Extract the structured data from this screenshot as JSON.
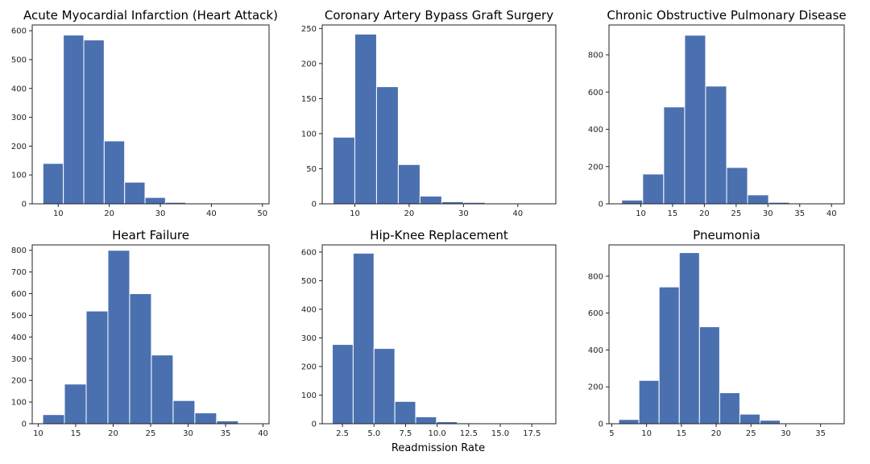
{
  "figure": {
    "xlabel": "Readmission Rate"
  },
  "chart_data": [
    {
      "type": "bar",
      "title": "Acute Myocardial Infarction (Heart Attack)",
      "xlim": [
        4.9,
        51.3
      ],
      "ylim": [
        0,
        620
      ],
      "xticks": [
        10,
        20,
        30,
        40,
        50
      ],
      "yticks": [
        0,
        100,
        200,
        300,
        400,
        500,
        600
      ],
      "bins": [
        [
          7.0,
          11.0
        ],
        [
          11.0,
          15.0
        ],
        [
          15.0,
          19.0
        ],
        [
          19.0,
          23.0
        ],
        [
          23.0,
          27.0
        ],
        [
          27.0,
          31.0
        ],
        [
          31.0,
          35.0
        ],
        [
          35.0,
          39.0
        ],
        [
          39.0,
          43.0
        ],
        [
          43.0,
          47.0
        ],
        [
          47.0,
          51.0
        ]
      ],
      "values": [
        140,
        585,
        568,
        218,
        75,
        22,
        5,
        2,
        1,
        1,
        1
      ]
    },
    {
      "type": "bar",
      "title": "Coronary Artery Bypass Graft Surgery",
      "xlim": [
        4.0,
        47.0
      ],
      "ylim": [
        0,
        255
      ],
      "xticks": [
        10,
        20,
        30,
        40
      ],
      "yticks": [
        0,
        50,
        100,
        150,
        200,
        250
      ],
      "bins": [
        [
          6.0,
          10.0
        ],
        [
          10.0,
          14.0
        ],
        [
          14.0,
          18.0
        ],
        [
          18.0,
          22.0
        ],
        [
          22.0,
          26.0
        ],
        [
          26.0,
          30.0
        ],
        [
          30.0,
          34.0
        ],
        [
          34.0,
          38.0
        ],
        [
          38.0,
          42.0
        ],
        [
          42.0,
          46.0
        ]
      ],
      "values": [
        95,
        242,
        167,
        56,
        11,
        3,
        2,
        1,
        1,
        1
      ]
    },
    {
      "type": "bar",
      "title": "Chronic Obstructive Pulmonary Disease",
      "xlim": [
        5.0,
        42.0
      ],
      "ylim": [
        0,
        960
      ],
      "xticks": [
        10,
        15,
        20,
        25,
        30,
        35,
        40
      ],
      "yticks": [
        0,
        200,
        400,
        600,
        800
      ],
      "bins": [
        [
          7.0,
          10.3
        ],
        [
          10.3,
          13.6
        ],
        [
          13.6,
          16.9
        ],
        [
          16.9,
          20.2
        ],
        [
          20.2,
          23.5
        ],
        [
          23.5,
          26.8
        ],
        [
          26.8,
          30.1
        ],
        [
          30.1,
          33.4
        ],
        [
          33.4,
          36.7
        ],
        [
          36.7,
          40.0
        ]
      ],
      "values": [
        20,
        160,
        520,
        905,
        632,
        195,
        48,
        8,
        4,
        2
      ]
    },
    {
      "type": "bar",
      "title": "Heart Failure",
      "xlim": [
        9.2,
        40.8
      ],
      "ylim": [
        0,
        825
      ],
      "xticks": [
        10,
        15,
        20,
        25,
        30,
        35,
        40
      ],
      "yticks": [
        0,
        100,
        200,
        300,
        400,
        500,
        600,
        700,
        800
      ],
      "bins": [
        [
          10.6,
          13.5
        ],
        [
          13.5,
          16.4
        ],
        [
          16.4,
          19.3
        ],
        [
          19.3,
          22.2
        ],
        [
          22.2,
          25.1
        ],
        [
          25.1,
          28.0
        ],
        [
          28.0,
          30.9
        ],
        [
          30.9,
          33.8
        ],
        [
          33.8,
          36.7
        ],
        [
          36.7,
          39.6
        ]
      ],
      "values": [
        42,
        183,
        520,
        800,
        600,
        317,
        107,
        50,
        13,
        3
      ]
    },
    {
      "type": "bar",
      "title": "Hip-Knee Replacement",
      "xlim": [
        0.9,
        19.4
      ],
      "ylim": [
        0,
        625
      ],
      "xticks": [
        2.5,
        5.0,
        7.5,
        10.0,
        12.5,
        15.0,
        17.5
      ],
      "yticks": [
        0,
        100,
        200,
        300,
        400,
        500,
        600
      ],
      "bins": [
        [
          1.7,
          3.35
        ],
        [
          3.35,
          5.0
        ],
        [
          5.0,
          6.65
        ],
        [
          6.65,
          8.3
        ],
        [
          8.3,
          9.95
        ],
        [
          9.95,
          11.6
        ],
        [
          11.6,
          13.25
        ],
        [
          13.25,
          14.9
        ],
        [
          14.9,
          16.55
        ],
        [
          16.55,
          18.2
        ]
      ],
      "values": [
        277,
        596,
        263,
        78,
        24,
        7,
        3,
        1,
        1,
        1
      ]
    },
    {
      "type": "bar",
      "title": "Pneumonia",
      "xlim": [
        4.6,
        38.4
      ],
      "ylim": [
        0,
        970
      ],
      "xticks": [
        5,
        10,
        15,
        20,
        25,
        30,
        35
      ],
      "yticks": [
        0,
        200,
        400,
        600,
        800
      ],
      "bins": [
        [
          6.0,
          8.9
        ],
        [
          8.9,
          11.8
        ],
        [
          11.8,
          14.7
        ],
        [
          14.7,
          17.6
        ],
        [
          17.6,
          20.5
        ],
        [
          20.5,
          23.4
        ],
        [
          23.4,
          26.3
        ],
        [
          26.3,
          29.2
        ],
        [
          29.2,
          32.1
        ],
        [
          32.1,
          35.0
        ]
      ],
      "values": [
        23,
        235,
        742,
        928,
        526,
        168,
        52,
        19,
        2,
        1
      ]
    }
  ],
  "style": {
    "bar_color": "#4a70b0",
    "bar_edge": "#ffffff"
  }
}
